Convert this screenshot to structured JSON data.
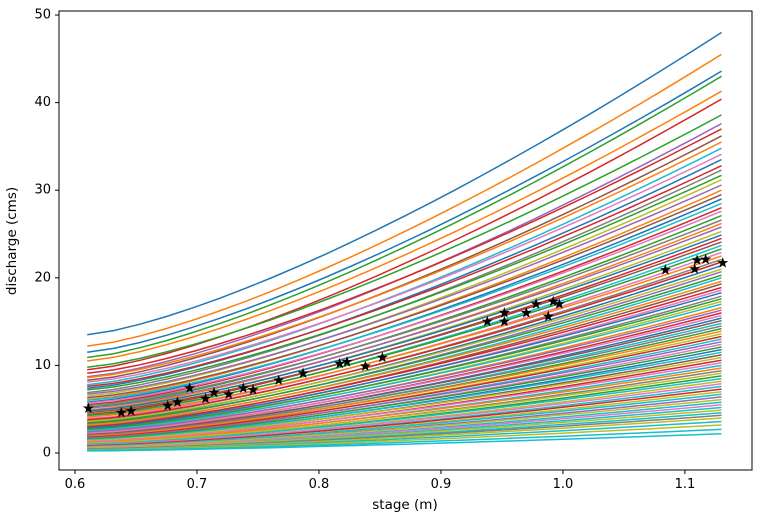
{
  "chart_data": {
    "type": "line",
    "title": "",
    "xlabel": "stage (m)",
    "ylabel": "discharge (cms)",
    "xlim": [
      0.5869,
      1.155
    ],
    "ylim": [
      -1.94,
      50.46
    ],
    "grid": false,
    "legend": "none",
    "xticks": {
      "values": [
        0.6,
        0.7,
        0.8,
        0.9,
        1.0,
        1.1
      ],
      "labels": [
        "0.6",
        "0.7",
        "0.8",
        "0.9",
        "1.0",
        "1.1"
      ]
    },
    "yticks": {
      "values": [
        0,
        10,
        20,
        30,
        40,
        50
      ],
      "labels": [
        "0",
        "10",
        "20",
        "30",
        "40",
        "50"
      ]
    },
    "palette": [
      "#1f77b4",
      "#ff7f0e",
      "#2ca02c",
      "#d62728",
      "#9467bd",
      "#8c564b",
      "#e377c2",
      "#7f7f7f",
      "#bcbd22",
      "#17becf"
    ],
    "axis_color": "#000000",
    "stage_range": [
      0.61,
      1.13
    ],
    "curve_exponent": 1.35,
    "curve_linewidth": 1.5,
    "rating_curves_note": "each entry = [palette_color_index, discharge_at_stage_0.61, discharge_at_stage_1.13]",
    "rating_curves": [
      [
        0,
        13.5,
        48.0
      ],
      [
        1,
        12.2,
        45.5
      ],
      [
        0,
        11.5,
        43.6
      ],
      [
        2,
        10.9,
        43.0
      ],
      [
        1,
        10.5,
        41.3
      ],
      [
        3,
        9.5,
        40.4
      ],
      [
        2,
        9.8,
        38.6
      ],
      [
        4,
        8.7,
        37.6
      ],
      [
        3,
        9.1,
        37.0
      ],
      [
        5,
        8.3,
        36.2
      ],
      [
        1,
        8.6,
        35.5
      ],
      [
        9,
        7.8,
        34.8
      ],
      [
        6,
        8.1,
        34.1
      ],
      [
        0,
        7.4,
        33.5
      ],
      [
        3,
        7.6,
        32.8
      ],
      [
        7,
        6.9,
        32.3
      ],
      [
        2,
        7.2,
        31.7
      ],
      [
        8,
        6.5,
        31.2
      ],
      [
        4,
        6.7,
        30.6
      ],
      [
        1,
        6.1,
        30.0
      ],
      [
        5,
        6.3,
        29.5
      ],
      [
        0,
        5.8,
        29.0
      ],
      [
        9,
        6.0,
        28.5
      ],
      [
        3,
        5.5,
        28.0
      ],
      [
        6,
        5.7,
        27.6
      ],
      [
        2,
        5.2,
        27.1
      ],
      [
        7,
        5.4,
        26.6
      ],
      [
        1,
        4.9,
        26.2
      ],
      [
        4,
        5.1,
        25.8
      ],
      [
        8,
        4.7,
        25.3
      ],
      [
        0,
        4.8,
        24.9
      ],
      [
        3,
        4.4,
        24.5
      ],
      [
        5,
        4.6,
        24.1
      ],
      [
        9,
        4.2,
        23.7
      ],
      [
        2,
        4.3,
        23.3
      ],
      [
        6,
        3.9,
        22.9
      ],
      [
        1,
        4.1,
        22.5
      ],
      [
        7,
        3.7,
        22.1
      ],
      [
        3,
        3.8,
        21.8
      ],
      [
        0,
        3.5,
        21.4
      ],
      [
        8,
        3.6,
        21.0
      ],
      [
        4,
        3.3,
        20.7
      ],
      [
        2,
        3.4,
        20.3
      ],
      [
        9,
        3.1,
        20.0
      ],
      [
        1,
        3.2,
        19.6
      ],
      [
        5,
        2.9,
        19.3
      ],
      [
        3,
        3.0,
        18.9
      ],
      [
        6,
        2.7,
        18.6
      ],
      [
        0,
        2.85,
        18.3
      ],
      [
        7,
        2.6,
        17.9
      ],
      [
        2,
        2.7,
        17.6
      ],
      [
        8,
        2.45,
        17.3
      ],
      [
        9,
        2.55,
        17.0
      ],
      [
        1,
        2.3,
        16.6
      ],
      [
        4,
        2.4,
        16.3
      ],
      [
        3,
        2.15,
        16.0
      ],
      [
        6,
        2.25,
        15.7
      ],
      [
        0,
        2.0,
        15.4
      ],
      [
        5,
        2.1,
        15.1
      ],
      [
        9,
        1.9,
        14.8
      ],
      [
        7,
        2.0,
        14.5
      ],
      [
        2,
        1.8,
        14.2
      ],
      [
        1,
        1.9,
        13.9
      ],
      [
        8,
        1.7,
        13.6
      ],
      [
        3,
        1.8,
        13.3
      ],
      [
        9,
        1.6,
        13.0
      ],
      [
        4,
        1.7,
        12.7
      ],
      [
        6,
        1.5,
        12.4
      ],
      [
        2,
        1.6,
        12.1
      ],
      [
        0,
        1.4,
        11.8
      ],
      [
        9,
        1.5,
        11.5
      ],
      [
        5,
        1.3,
        11.2
      ],
      [
        8,
        1.4,
        10.9
      ],
      [
        3,
        1.2,
        10.6
      ],
      [
        6,
        1.3,
        10.3
      ],
      [
        9,
        1.1,
        10.0
      ],
      [
        1,
        1.2,
        9.7
      ],
      [
        7,
        1.0,
        9.4
      ],
      [
        8,
        1.1,
        9.1
      ],
      [
        2,
        0.95,
        8.8
      ],
      [
        9,
        1.0,
        8.5
      ],
      [
        8,
        0.85,
        8.2
      ],
      [
        6,
        0.9,
        7.9
      ],
      [
        9,
        0.78,
        7.6
      ],
      [
        3,
        0.82,
        7.3
      ],
      [
        8,
        0.7,
        7.0
      ],
      [
        9,
        0.74,
        6.7
      ],
      [
        4,
        0.62,
        6.4
      ],
      [
        8,
        0.66,
        6.1
      ],
      [
        9,
        0.55,
        5.8
      ],
      [
        6,
        0.58,
        5.5
      ],
      [
        9,
        0.5,
        5.2
      ],
      [
        8,
        0.52,
        4.9
      ],
      [
        9,
        0.44,
        4.6
      ],
      [
        7,
        0.46,
        4.3
      ],
      [
        8,
        0.38,
        4.0
      ],
      [
        9,
        0.34,
        3.6
      ],
      [
        8,
        0.3,
        3.2
      ],
      [
        9,
        0.27,
        2.7
      ],
      [
        9,
        0.24,
        2.2
      ]
    ],
    "observations": {
      "marker": "star",
      "color": "#000000",
      "points": [
        [
          0.611,
          5.1
        ],
        [
          0.638,
          4.6
        ],
        [
          0.646,
          4.8
        ],
        [
          0.676,
          5.4
        ],
        [
          0.684,
          5.8
        ],
        [
          0.694,
          7.4
        ],
        [
          0.707,
          6.2
        ],
        [
          0.714,
          6.9
        ],
        [
          0.726,
          6.7
        ],
        [
          0.738,
          7.4
        ],
        [
          0.746,
          7.2
        ],
        [
          0.767,
          8.3
        ],
        [
          0.787,
          9.1
        ],
        [
          0.817,
          10.2
        ],
        [
          0.823,
          10.4
        ],
        [
          0.838,
          9.9
        ],
        [
          0.852,
          10.9
        ],
        [
          0.938,
          15.0
        ],
        [
          0.952,
          16.0
        ],
        [
          0.952,
          15.0
        ],
        [
          0.97,
          16.0
        ],
        [
          0.978,
          17.0
        ],
        [
          0.988,
          15.6
        ],
        [
          0.992,
          17.3
        ],
        [
          0.997,
          17.0
        ],
        [
          1.084,
          20.9
        ],
        [
          1.108,
          21.0
        ],
        [
          1.11,
          22.0
        ],
        [
          1.117,
          22.1
        ],
        [
          1.131,
          21.7
        ]
      ]
    }
  }
}
